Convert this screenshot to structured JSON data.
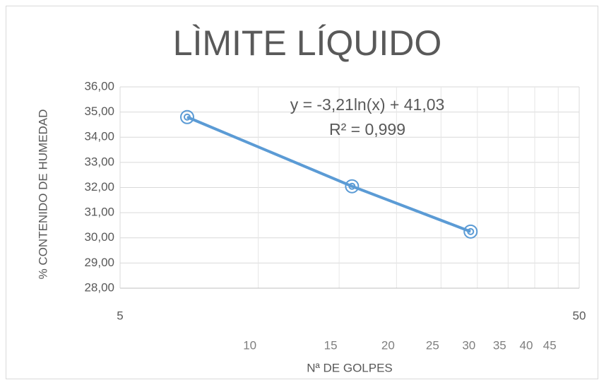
{
  "chart_data": {
    "type": "scatter",
    "title": "LÌMITE LÍQUIDO",
    "x_label": "Nª DE GOLPES",
    "y_label": "% CONTENIDO DE HUMEDAD",
    "annotations": [
      "y = -3,21ln(x) + 41,03",
      "R² = 0,999"
    ],
    "series": [
      {
        "name": "Contenido de humedad",
        "color": "#5b9bd5",
        "x": [
          7,
          16,
          29
        ],
        "values": [
          34.8,
          32.05,
          30.25
        ]
      }
    ],
    "x_log": true,
    "xlim": [
      5,
      50
    ],
    "xticks": [
      5,
      50
    ],
    "xminor_ticks": [
      10,
      15,
      20,
      25,
      30,
      35,
      40,
      45
    ],
    "ylim": [
      28,
      36
    ],
    "yticks": [
      {
        "value": 28,
        "label": "28,00"
      },
      {
        "value": 29,
        "label": "29,00"
      },
      {
        "value": 30,
        "label": "30,00"
      },
      {
        "value": 31,
        "label": "31,00"
      },
      {
        "value": 32,
        "label": "32,00"
      },
      {
        "value": 33,
        "label": "33,00"
      },
      {
        "value": 34,
        "label": "34,00"
      },
      {
        "value": 35,
        "label": "35,00"
      },
      {
        "value": 36,
        "label": "36,00"
      }
    ],
    "grid": true
  }
}
